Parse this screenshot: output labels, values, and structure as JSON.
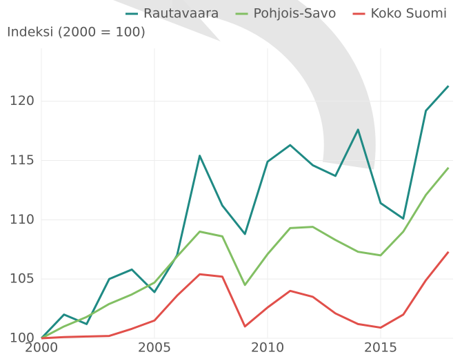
{
  "chart_data": {
    "type": "line",
    "y_label": "Indeksi (2000 = 100)",
    "x": [
      2000,
      2001,
      2002,
      2003,
      2004,
      2005,
      2006,
      2007,
      2008,
      2009,
      2010,
      2011,
      2012,
      2013,
      2014,
      2015,
      2016,
      2017,
      2018
    ],
    "series": [
      {
        "name": "Rautavaara",
        "color": "#1f8a84",
        "values": [
          100,
          102.0,
          101.2,
          105.0,
          105.8,
          103.9,
          107.0,
          115.4,
          111.2,
          108.8,
          114.9,
          116.3,
          114.6,
          113.7,
          117.6,
          111.4,
          110.1,
          119.2,
          121.3
        ]
      },
      {
        "name": "Pohjois-Savo",
        "color": "#82bf63",
        "values": [
          100,
          101.0,
          101.8,
          102.9,
          103.7,
          104.7,
          106.9,
          109.0,
          108.6,
          104.5,
          107.1,
          109.3,
          109.4,
          108.3,
          107.3,
          107.0,
          109.0,
          112.1,
          114.4
        ]
      },
      {
        "name": "Koko Suomi",
        "color": "#e14f4a",
        "values": [
          100,
          100.1,
          100.15,
          100.2,
          100.8,
          101.5,
          103.6,
          105.4,
          105.2,
          101.0,
          102.6,
          104.0,
          103.5,
          102.1,
          101.2,
          100.9,
          102.0,
          104.9,
          107.3
        ]
      }
    ],
    "xlim": [
      2000,
      2018.2
    ],
    "xticks": [
      2000,
      2005,
      2010,
      2015
    ],
    "ylim": [
      100,
      124
    ],
    "yticks": [
      100,
      105,
      110,
      115,
      120
    ],
    "grid": true
  }
}
